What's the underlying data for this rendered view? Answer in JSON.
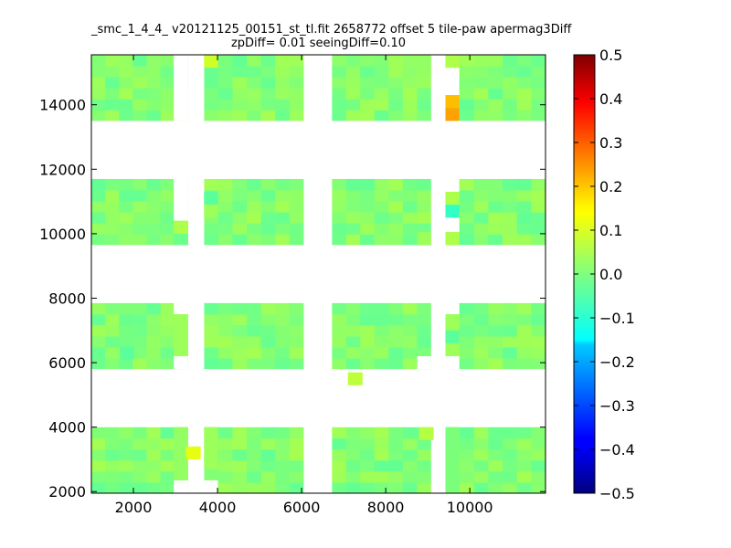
{
  "chart_data": {
    "type": "heatmap",
    "title_line1": "_smc_1_4_4_ v20121125_00151_st_tl.fit 2658772 offset 5 tile-paw apermag3Diff",
    "title_line2": "zpDiff= 0.01 seeingDiff=0.10",
    "xlim": [
      1000,
      11800
    ],
    "ylim": [
      1950,
      15550
    ],
    "x_ticks": [
      2000,
      4000,
      6000,
      8000,
      10000
    ],
    "y_ticks": [
      2000,
      4000,
      6000,
      8000,
      10000,
      12000,
      14000
    ],
    "x_tick_labels": [
      "2000",
      "4000",
      "6000",
      "8000",
      "10000"
    ],
    "y_tick_labels": [
      "2000",
      "4000",
      "6000",
      "8000",
      "10000",
      "12000",
      "14000"
    ],
    "colorbar": {
      "vmin": -0.5,
      "vmax": 0.5,
      "colormap": "jet",
      "ticks": [
        0.5,
        0.4,
        0.3,
        0.2,
        0.1,
        0.0,
        -0.1,
        -0.2,
        -0.3,
        -0.4,
        -0.5
      ],
      "tick_labels": [
        "0.5",
        "0.4",
        "0.3",
        "0.2",
        "0.1",
        "0.0",
        "−0.1",
        "−0.2",
        "−0.3",
        "−0.4",
        "−0.5"
      ]
    },
    "grid": false,
    "default_value": 0.0,
    "column_groups": [
      {
        "x_start": 1000,
        "x_end": 3300,
        "cols": 7
      },
      {
        "x_start": 3680,
        "x_end": 6050,
        "cols": 7
      },
      {
        "x_start": 6720,
        "x_end": 9080,
        "cols": 7
      },
      {
        "x_start": 9420,
        "x_end": 11800,
        "cols": 7
      }
    ],
    "row_groups": [
      {
        "y_start": 1950,
        "y_end": 4000,
        "rows": 6
      },
      {
        "y_start": 5800,
        "y_end": 7850,
        "rows": 6
      },
      {
        "y_start": 9650,
        "y_end": 11700,
        "rows": 6
      },
      {
        "y_start": 13500,
        "y_end": 15550,
        "rows": 6
      }
    ],
    "cells": [
      {
        "x": 1000,
        "y": 1950,
        "w": 1960,
        "h": 2050,
        "v": 0.04
      },
      {
        "x": 2960,
        "y": 2350,
        "w": 340,
        "h": 1650,
        "v": 0.03
      },
      {
        "x": 3250,
        "y": 3000,
        "w": 350,
        "h": 400,
        "v": 0.13
      },
      {
        "x": 3680,
        "y": 2350,
        "w": 2370,
        "h": 1650,
        "v": 0.01
      },
      {
        "x": 3680,
        "y": 2700,
        "w": 330,
        "h": 1300,
        "v": 0.04
      },
      {
        "x": 6720,
        "y": 2350,
        "w": 2360,
        "h": 1650,
        "v": 0.01
      },
      {
        "x": 8800,
        "y": 3600,
        "w": 340,
        "h": 400,
        "v": 0.07
      },
      {
        "x": 9420,
        "y": 2000,
        "w": 330,
        "h": 2000,
        "v": 0.0
      },
      {
        "x": 9750,
        "y": 1950,
        "w": 2050,
        "h": 2050,
        "v": 0.03
      },
      {
        "x": 1000,
        "y": 5800,
        "w": 1960,
        "h": 2050,
        "v": 0.02
      },
      {
        "x": 1680,
        "y": 6100,
        "w": 340,
        "h": 400,
        "v": -0.04
      },
      {
        "x": 2960,
        "y": 6200,
        "w": 340,
        "h": 1300,
        "v": 0.04
      },
      {
        "x": 3680,
        "y": 5800,
        "w": 2370,
        "h": 2050,
        "v": 0.0
      },
      {
        "x": 6720,
        "y": 5800,
        "w": 2360,
        "h": 2050,
        "v": -0.01
      },
      {
        "x": 6720,
        "y": 6200,
        "w": 2360,
        "h": 1650,
        "v": 0.0
      },
      {
        "x": 7100,
        "y": 5300,
        "w": 350,
        "h": 400,
        "v": 0.08
      },
      {
        "x": 9420,
        "y": 6200,
        "w": 330,
        "h": 1300,
        "v": 0.04
      },
      {
        "x": 9420,
        "y": 6600,
        "w": 330,
        "h": 400,
        "v": -0.04
      },
      {
        "x": 9750,
        "y": 5800,
        "w": 2050,
        "h": 2050,
        "v": 0.02
      },
      {
        "x": 1000,
        "y": 9650,
        "w": 2300,
        "h": 2050,
        "v": 0.02
      },
      {
        "x": 2960,
        "y": 9650,
        "w": 340,
        "h": 400,
        "v": -0.02
      },
      {
        "x": 2960,
        "y": 10000,
        "w": 340,
        "h": 400,
        "v": 0.06
      },
      {
        "x": 3680,
        "y": 9650,
        "w": 2370,
        "h": 2050,
        "v": 0.01
      },
      {
        "x": 3680,
        "y": 10900,
        "w": 330,
        "h": 400,
        "v": -0.04
      },
      {
        "x": 3680,
        "y": 10500,
        "w": 330,
        "h": 400,
        "v": 0.04
      },
      {
        "x": 6720,
        "y": 9650,
        "w": 2360,
        "h": 2050,
        "v": 0.0
      },
      {
        "x": 8750,
        "y": 9650,
        "w": 330,
        "h": 400,
        "v": 0.04
      },
      {
        "x": 9420,
        "y": 9650,
        "w": 330,
        "h": 400,
        "v": 0.06
      },
      {
        "x": 9420,
        "y": 10500,
        "w": 330,
        "h": 400,
        "v": -0.09
      },
      {
        "x": 9420,
        "y": 10900,
        "w": 330,
        "h": 400,
        "v": 0.06
      },
      {
        "x": 9750,
        "y": 9650,
        "w": 2050,
        "h": 2050,
        "v": 0.01
      },
      {
        "x": 1000,
        "y": 13500,
        "w": 2300,
        "h": 2050,
        "v": 0.04
      },
      {
        "x": 3680,
        "y": 13500,
        "w": 2370,
        "h": 2050,
        "v": 0.02
      },
      {
        "x": 3680,
        "y": 15150,
        "w": 330,
        "h": 400,
        "v": 0.1
      },
      {
        "x": 6720,
        "y": 13500,
        "w": 2360,
        "h": 2050,
        "v": 0.0
      },
      {
        "x": 9420,
        "y": 13500,
        "w": 330,
        "h": 400,
        "v": 0.24
      },
      {
        "x": 9420,
        "y": 13900,
        "w": 330,
        "h": 400,
        "v": 0.21
      },
      {
        "x": 9420,
        "y": 15150,
        "w": 330,
        "h": 400,
        "v": 0.06
      },
      {
        "x": 9750,
        "y": 13500,
        "w": 2050,
        "h": 2050,
        "v": 0.0
      }
    ]
  }
}
